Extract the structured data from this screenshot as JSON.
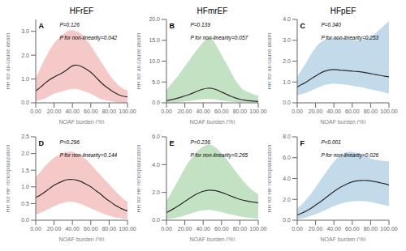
{
  "chart_data": [
    {
      "type": "line",
      "title": "HFrEF",
      "annotations": [
        "A",
        "P=0.126",
        "P for non-linearity=0.042"
      ],
      "xlabel": "NOAF burden (%)",
      "ylabel": "HR for all-cause death",
      "grid": false,
      "x": [
        0,
        5,
        10,
        15,
        20,
        25,
        30,
        35,
        40,
        45,
        50,
        55,
        60,
        65,
        70,
        75,
        80,
        85,
        90,
        95,
        100
      ],
      "xlim": [
        0,
        100
      ],
      "xticks": [
        {
          "value": 0,
          "label": "0.00"
        },
        {
          "value": 20,
          "label": "20.00"
        },
        {
          "value": 40,
          "label": "40.00"
        },
        {
          "value": 60,
          "label": "60.00"
        },
        {
          "value": 80,
          "label": "80.00"
        },
        {
          "value": 100,
          "label": "100.00"
        }
      ],
      "ylim": [
        0,
        3.5
      ],
      "yticks": [
        {
          "value": 0,
          "label": "0.0"
        },
        {
          "value": 1,
          "label": "1.0"
        },
        {
          "value": 2,
          "label": "2.0"
        },
        {
          "value": 3,
          "label": "3.0"
        }
      ],
      "series": [
        {
          "type": "band",
          "color": "#f5c0c0",
          "lower": [
            0.08,
            0.12,
            0.18,
            0.28,
            0.38,
            0.44,
            0.5,
            0.55,
            0.58,
            0.58,
            0.52,
            0.46,
            0.38,
            0.28,
            0.18,
            0.12,
            0.08,
            0.04,
            0.02,
            0.01,
            0.01
          ],
          "upper": [
            1.05,
            1.45,
            1.85,
            2.2,
            2.5,
            2.72,
            2.88,
            3.02,
            3.05,
            3.0,
            2.88,
            2.65,
            2.4,
            2.1,
            1.8,
            1.5,
            1.2,
            0.95,
            0.75,
            0.6,
            0.52
          ]
        },
        {
          "type": "line",
          "color": "#2a2a2a",
          "values": [
            0.5,
            0.65,
            0.82,
            0.97,
            1.08,
            1.18,
            1.28,
            1.42,
            1.55,
            1.58,
            1.52,
            1.42,
            1.28,
            1.1,
            0.9,
            0.72,
            0.58,
            0.45,
            0.35,
            0.28,
            0.25
          ]
        }
      ]
    },
    {
      "type": "line",
      "title": "HFmrEF",
      "annotations": [
        "B",
        "P=0.139",
        "P for non-linearity=0.057"
      ],
      "xlabel": "NOAF burden (%)",
      "ylabel": "HR for all-cause death",
      "grid": false,
      "x": [
        0,
        5,
        10,
        15,
        20,
        25,
        30,
        35,
        40,
        45,
        50,
        55,
        60,
        65,
        70,
        75,
        80,
        85,
        90,
        95,
        100
      ],
      "xlim": [
        0,
        100
      ],
      "xticks": [
        {
          "value": 0,
          "label": "0.00"
        },
        {
          "value": 20,
          "label": "20.00"
        },
        {
          "value": 40,
          "label": "40.00"
        },
        {
          "value": 60,
          "label": "60.00"
        },
        {
          "value": 80,
          "label": "80.00"
        },
        {
          "value": 100,
          "label": "100.00"
        }
      ],
      "ylim": [
        0,
        20
      ],
      "yticks": [
        {
          "value": 0,
          "label": "0.0"
        },
        {
          "value": 5,
          "label": "5.0"
        },
        {
          "value": 10,
          "label": "10.0"
        },
        {
          "value": 15,
          "label": "15.0"
        },
        {
          "value": 20,
          "label": "20.0"
        }
      ],
      "series": [
        {
          "type": "band",
          "color": "#b8ddb8",
          "lower": [
            0.05,
            0.08,
            0.12,
            0.2,
            0.32,
            0.45,
            0.6,
            0.75,
            0.85,
            0.92,
            0.88,
            0.75,
            0.58,
            0.42,
            0.28,
            0.18,
            0.12,
            0.08,
            0.05,
            0.03,
            0.02
          ],
          "upper": [
            3.0,
            4.5,
            5.8,
            7.2,
            8.8,
            10.2,
            11.8,
            13.2,
            14.5,
            15.5,
            15.2,
            13.5,
            11.5,
            9.5,
            7.5,
            5.5,
            4.0,
            3.0,
            2.5,
            2.0,
            1.8
          ]
        },
        {
          "type": "line",
          "color": "#2a2a2a",
          "values": [
            0.5,
            0.75,
            1.0,
            1.3,
            1.65,
            2.0,
            2.45,
            2.9,
            3.3,
            3.5,
            3.45,
            3.1,
            2.6,
            2.1,
            1.6,
            1.2,
            0.88,
            0.65,
            0.5,
            0.4,
            0.32
          ]
        }
      ]
    },
    {
      "type": "line",
      "title": "HFpEF",
      "annotations": [
        "C",
        "P=0.340",
        "P for non-linearity=0.253"
      ],
      "xlabel": "NOAF burden (%)",
      "ylabel": "HR for all-cause death",
      "grid": false,
      "x": [
        0,
        5,
        10,
        15,
        20,
        25,
        30,
        35,
        40,
        45,
        50,
        55,
        60,
        65,
        70,
        75,
        80,
        85,
        90,
        95,
        100
      ],
      "xlim": [
        0,
        100
      ],
      "xticks": [
        {
          "value": 0,
          "label": "0.00"
        },
        {
          "value": 20,
          "label": "20.00"
        },
        {
          "value": 40,
          "label": "40.00"
        },
        {
          "value": 60,
          "label": "60.00"
        },
        {
          "value": 80,
          "label": "80.00"
        },
        {
          "value": 100,
          "label": "100.00"
        }
      ],
      "ylim": [
        0,
        4.0
      ],
      "yticks": [
        {
          "value": 0,
          "label": "0.0"
        },
        {
          "value": 1,
          "label": "1.0"
        },
        {
          "value": 2,
          "label": "2.0"
        },
        {
          "value": 3,
          "label": "3.0"
        },
        {
          "value": 4,
          "label": "4.0"
        }
      ],
      "series": [
        {
          "type": "band",
          "color": "#b8d4e8",
          "lower": [
            0.35,
            0.42,
            0.48,
            0.58,
            0.68,
            0.78,
            0.85,
            0.9,
            0.92,
            0.9,
            0.88,
            0.85,
            0.82,
            0.78,
            0.75,
            0.7,
            0.65,
            0.6,
            0.55,
            0.5,
            0.45
          ],
          "upper": [
            1.25,
            1.58,
            1.95,
            2.32,
            2.65,
            2.88,
            3.02,
            3.1,
            3.12,
            3.1,
            3.08,
            3.05,
            3.02,
            3.0,
            3.02,
            3.1,
            3.18,
            3.32,
            3.52,
            3.72,
            3.92
          ]
        },
        {
          "type": "line",
          "color": "#2a2a2a",
          "values": [
            0.75,
            0.88,
            1.0,
            1.15,
            1.28,
            1.42,
            1.52,
            1.58,
            1.6,
            1.58,
            1.56,
            1.54,
            1.52,
            1.5,
            1.48,
            1.44,
            1.4,
            1.36,
            1.32,
            1.28,
            1.25
          ]
        }
      ]
    },
    {
      "type": "line",
      "annotations": [
        "D",
        "P=0.296",
        "P for non-linearity=0.144"
      ],
      "xlabel": "NOAF burden (%)",
      "ylabel": "HR for HF rehospitalization",
      "grid": false,
      "x": [
        0,
        5,
        10,
        15,
        20,
        25,
        30,
        35,
        40,
        45,
        50,
        55,
        60,
        65,
        70,
        75,
        80,
        85,
        90,
        95,
        100
      ],
      "xlim": [
        0,
        100
      ],
      "xticks": [
        {
          "value": 0,
          "label": "0.00"
        },
        {
          "value": 20,
          "label": "20.00"
        },
        {
          "value": 40,
          "label": "40.00"
        },
        {
          "value": 60,
          "label": "60.00"
        },
        {
          "value": 80,
          "label": "80.00"
        },
        {
          "value": 100,
          "label": "100.00"
        }
      ],
      "ylim": [
        0,
        2.5
      ],
      "yticks": [
        {
          "value": 0,
          "label": "0.0"
        },
        0.5,
        {
          "value": 1,
          "label": "1.0"
        },
        1.5,
        {
          "value": 2,
          "label": "2.0"
        },
        2.5
      ],
      "series": [
        {
          "type": "band",
          "color": "#f5c0c0",
          "lower": [
            0.18,
            0.22,
            0.28,
            0.35,
            0.42,
            0.48,
            0.52,
            0.55,
            0.55,
            0.52,
            0.48,
            0.42,
            0.36,
            0.3,
            0.24,
            0.18,
            0.14,
            0.1,
            0.07,
            0.05,
            0.04
          ],
          "upper": [
            1.3,
            1.45,
            1.62,
            1.75,
            1.88,
            1.95,
            2.02,
            2.05,
            2.05,
            2.0,
            1.92,
            1.82,
            1.68,
            1.52,
            1.38,
            1.22,
            1.08,
            0.92,
            0.78,
            0.65,
            0.56
          ]
        },
        {
          "type": "line",
          "color": "#2a2a2a",
          "values": [
            0.68,
            0.75,
            0.85,
            0.95,
            1.05,
            1.12,
            1.18,
            1.22,
            1.22,
            1.2,
            1.15,
            1.08,
            1.0,
            0.9,
            0.8,
            0.68,
            0.58,
            0.48,
            0.4,
            0.33,
            0.28
          ]
        }
      ]
    },
    {
      "type": "line",
      "annotations": [
        "E",
        "P=0.236",
        "P for non-linearity=0.265"
      ],
      "xlabel": "NOAF burden (%)",
      "ylabel": "HR for HF rehospitalization",
      "grid": false,
      "x": [
        0,
        5,
        10,
        15,
        20,
        25,
        30,
        35,
        40,
        45,
        50,
        55,
        60,
        65,
        70,
        75,
        80,
        85,
        90,
        95,
        100
      ],
      "xlim": [
        0,
        100
      ],
      "xticks": [
        {
          "value": 0,
          "label": "0.00"
        },
        {
          "value": 20,
          "label": "20.00"
        },
        {
          "value": 40,
          "label": "40.00"
        },
        {
          "value": 60,
          "label": "60.00"
        },
        {
          "value": 80,
          "label": "80.00"
        },
        {
          "value": 100,
          "label": "100.00"
        }
      ],
      "ylim": [
        0,
        6.0
      ],
      "yticks": [
        {
          "value": 0,
          "label": "0.0"
        },
        {
          "value": 2,
          "label": "2.0"
        },
        {
          "value": 4,
          "label": "4.0"
        },
        {
          "value": 6,
          "label": "6.0"
        }
      ],
      "series": [
        {
          "type": "band",
          "color": "#b8ddb8",
          "lower": [
            0.08,
            0.12,
            0.18,
            0.25,
            0.35,
            0.45,
            0.55,
            0.65,
            0.72,
            0.75,
            0.72,
            0.65,
            0.58,
            0.5,
            0.42,
            0.35,
            0.28,
            0.22,
            0.18,
            0.15,
            0.12
          ],
          "upper": [
            1.4,
            1.95,
            2.55,
            3.15,
            3.75,
            4.25,
            4.7,
            5.05,
            5.3,
            5.45,
            5.38,
            5.15,
            4.82,
            4.42,
            4.0,
            3.55,
            3.12,
            2.72,
            2.38,
            2.1,
            1.88
          ]
        },
        {
          "type": "line",
          "color": "#2a2a2a",
          "values": [
            0.55,
            0.72,
            0.92,
            1.12,
            1.35,
            1.58,
            1.78,
            1.95,
            2.08,
            2.15,
            2.15,
            2.1,
            2.0,
            1.88,
            1.75,
            1.62,
            1.5,
            1.42,
            1.35,
            1.3,
            1.25
          ]
        }
      ]
    },
    {
      "type": "line",
      "annotations": [
        "F",
        "P<0.001",
        "P for non-linearity=0.026"
      ],
      "xlabel": "NOAF burden (%)",
      "ylabel": "HR for HF rehospitalization",
      "grid": false,
      "x": [
        0,
        5,
        10,
        15,
        20,
        25,
        30,
        35,
        40,
        45,
        50,
        55,
        60,
        65,
        70,
        75,
        80,
        85,
        90,
        95,
        100
      ],
      "xlim": [
        0,
        100
      ],
      "xticks": [
        {
          "value": 0,
          "label": "0.00"
        },
        {
          "value": 20,
          "label": "20.00"
        },
        {
          "value": 40,
          "label": "40.00"
        },
        {
          "value": 60,
          "label": "60.00"
        },
        {
          "value": 80,
          "label": "80.00"
        },
        {
          "value": 100,
          "label": "100.00"
        }
      ],
      "ylim": [
        0,
        8.0
      ],
      "yticks": [
        {
          "value": 0,
          "label": "0.0"
        },
        {
          "value": 2,
          "label": "2.0"
        },
        {
          "value": 4,
          "label": "4.0"
        },
        {
          "value": 6,
          "label": "6.0"
        },
        {
          "value": 8,
          "label": "8.0"
        }
      ],
      "series": [
        {
          "type": "band",
          "color": "#b8d4e8",
          "lower": [
            0.12,
            0.18,
            0.28,
            0.42,
            0.58,
            0.75,
            0.95,
            1.15,
            1.35,
            1.52,
            1.65,
            1.75,
            1.82,
            1.85,
            1.85,
            1.82,
            1.75,
            1.65,
            1.55,
            1.45,
            1.35
          ],
          "upper": [
            1.15,
            1.52,
            2.0,
            2.55,
            3.15,
            3.78,
            4.42,
            5.05,
            5.62,
            6.05,
            6.38,
            6.55,
            6.55,
            6.45,
            6.3,
            6.12,
            5.95,
            5.8,
            5.72,
            5.68,
            5.65
          ]
        },
        {
          "type": "line",
          "color": "#2a2a2a",
          "values": [
            0.5,
            0.68,
            0.9,
            1.15,
            1.45,
            1.75,
            2.08,
            2.42,
            2.75,
            3.05,
            3.3,
            3.52,
            3.68,
            3.78,
            3.82,
            3.82,
            3.78,
            3.7,
            3.6,
            3.5,
            3.38
          ]
        }
      ]
    }
  ]
}
